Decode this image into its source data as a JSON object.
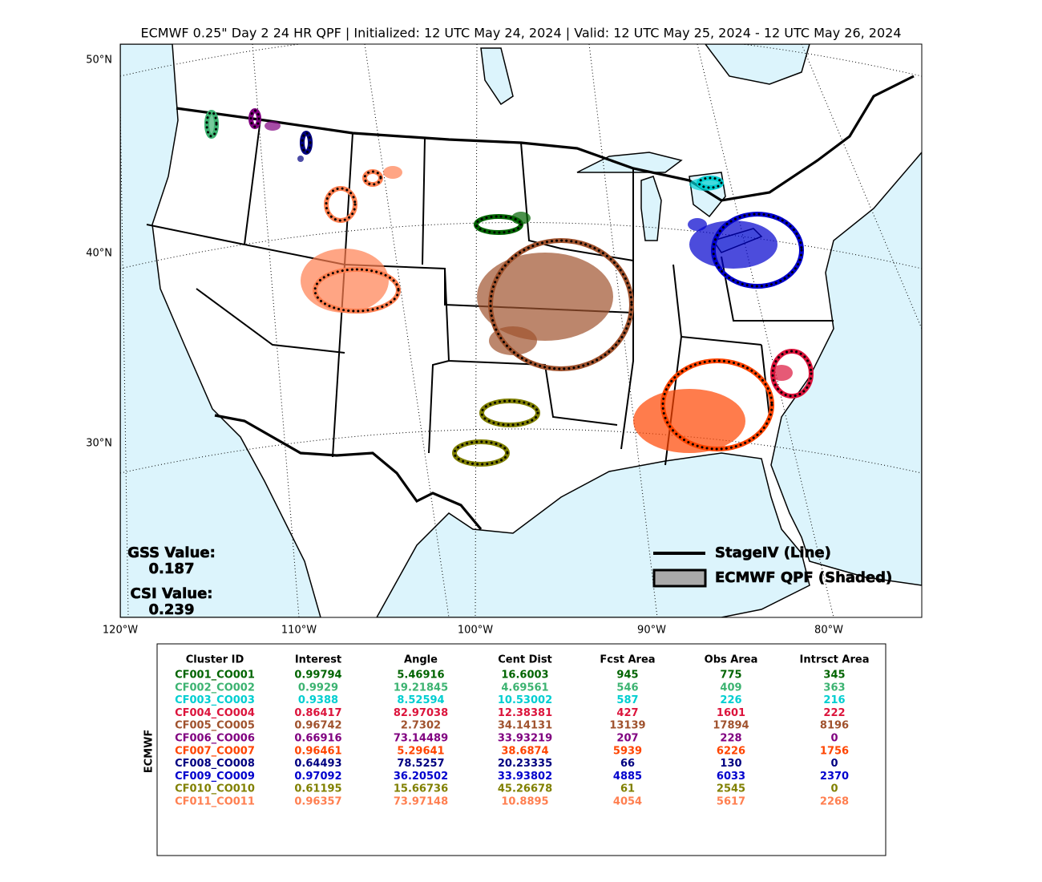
{
  "title": "ECMWF 0.25\" Day 2 24 HR QPF | Initialized: 12 UTC May 24, 2024 | Valid: 12 UTC May 25, 2024 - 12 UTC May 26, 2024",
  "map": {
    "lat_labels": [
      "50°N",
      "40°N",
      "30°N"
    ],
    "lon_labels": [
      "120°W",
      "110°W",
      "100°W",
      "90°W",
      "80°W"
    ]
  },
  "stats": [
    {
      "label": "GSS Value:",
      "value": 0.187
    },
    {
      "label": "CSI Value:",
      "value": 0.239
    }
  ],
  "legend": [
    "StageIV (Line)",
    "ECMWF QPF (Shaded)"
  ],
  "table": {
    "side_label": "ECMWF",
    "columns": [
      "Cluster ID",
      "Interest",
      "Angle",
      "Cent Dist",
      "Fcst Area",
      "Obs Area",
      "Intrsct Area"
    ],
    "rows": [
      {
        "color": "#006400",
        "cells": [
          "CF001_CO001",
          0.99794,
          5.46916,
          16.6003,
          945,
          775,
          345
        ]
      },
      {
        "color": "#3cb371",
        "cells": [
          "CF002_CO002",
          0.9929,
          19.21845,
          4.69561,
          546,
          409,
          363
        ]
      },
      {
        "color": "#00ced1",
        "cells": [
          "CF003_CO003",
          0.9388,
          8.52594,
          10.53002,
          587,
          226,
          216
        ]
      },
      {
        "color": "#dc143c",
        "cells": [
          "CF004_CO004",
          0.86417,
          82.97038,
          12.38381,
          427,
          1601,
          222
        ]
      },
      {
        "color": "#a0522d",
        "cells": [
          "CF005_CO005",
          0.96742,
          2.7302,
          34.14131,
          13139,
          17894,
          8196
        ]
      },
      {
        "color": "#800080",
        "cells": [
          "CF006_CO006",
          0.66916,
          73.14489,
          33.93219,
          207,
          228,
          0
        ]
      },
      {
        "color": "#ff4500",
        "cells": [
          "CF007_CO007",
          0.96461,
          5.29641,
          38.6874,
          5939,
          6226,
          1756
        ]
      },
      {
        "color": "#000080",
        "cells": [
          "CF008_CO008",
          0.64493,
          78.5257,
          20.23335,
          66,
          130,
          0
        ]
      },
      {
        "color": "#0000cd",
        "cells": [
          "CF009_CO009",
          0.97092,
          36.20502,
          33.93802,
          4885,
          6033,
          2370
        ]
      },
      {
        "color": "#808000",
        "cells": [
          "CF010_CO010",
          0.61195,
          15.66736,
          45.26678,
          61,
          2545,
          0
        ]
      },
      {
        "color": "#ff7f50",
        "cells": [
          "CF011_CO011",
          0.96357,
          73.97148,
          10.8895,
          4054,
          5617,
          2268
        ]
      }
    ]
  }
}
